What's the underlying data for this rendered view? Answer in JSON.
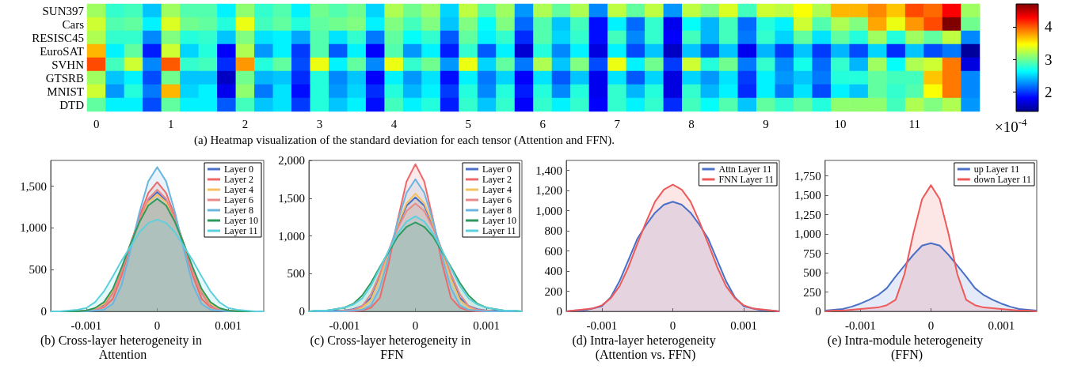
{
  "chart_data": [
    {
      "type": "heatmap",
      "title": "(a) Heatmap visualization of the standard deviation for each tensor (Attention and FFN).",
      "categories": [
        "0",
        null,
        null,
        null,
        "1",
        null,
        null,
        null,
        "2",
        null,
        null,
        null,
        "3",
        null,
        null,
        null,
        "4",
        null,
        null,
        null,
        "5",
        null,
        null,
        null,
        "6",
        null,
        null,
        null,
        "7",
        null,
        null,
        null,
        "8",
        null,
        null,
        null,
        "9",
        null,
        null,
        null,
        "10",
        null,
        null,
        null,
        "11",
        null,
        null,
        null
      ],
      "y_categories": [
        "SUN397",
        "Cars",
        "RESISC45",
        "EuroSAT",
        "SVHN",
        "GTSRB",
        "MNIST",
        "DTD"
      ],
      "cells": [
        [
          3.15,
          2.8,
          2.85,
          2.45,
          3.15,
          2.9,
          2.9,
          2.6,
          3.1,
          2.8,
          2.9,
          2.6,
          3.0,
          2.9,
          3.0,
          2.5,
          3.2,
          3.0,
          3.15,
          2.5,
          3.25,
          2.9,
          3.15,
          2.3,
          3.2,
          2.95,
          3.2,
          2.25,
          3.25,
          2.95,
          3.25,
          2.3,
          3.25,
          3.05,
          3.35,
          2.85,
          3.3,
          3.25,
          3.45,
          3.2,
          3.7,
          3.7,
          3.85,
          3.65,
          4.05,
          3.95,
          4.3,
          3.15
        ],
        [
          3.3,
          2.9,
          2.95,
          2.6,
          3.35,
          3.0,
          2.95,
          2.75,
          3.4,
          2.85,
          2.95,
          2.75,
          2.95,
          3.0,
          3.05,
          2.6,
          3.05,
          2.85,
          3.05,
          2.45,
          3.05,
          2.65,
          3.05,
          2.15,
          2.9,
          2.45,
          2.85,
          1.85,
          2.6,
          2.15,
          2.8,
          1.75,
          2.65,
          2.4,
          2.85,
          2.15,
          2.75,
          2.6,
          3.3,
          2.9,
          3.2,
          3.05,
          3.75,
          3.4,
          3.8,
          4.05,
          4.7,
          3.0
        ],
        [
          3.2,
          2.8,
          2.8,
          2.25,
          3.05,
          2.75,
          2.8,
          2.45,
          3.05,
          2.55,
          2.6,
          2.35,
          2.9,
          2.55,
          2.8,
          2.2,
          2.95,
          2.65,
          2.8,
          2.1,
          2.95,
          2.6,
          2.8,
          1.95,
          2.9,
          2.5,
          2.8,
          1.85,
          2.85,
          2.25,
          2.8,
          1.8,
          2.85,
          2.4,
          2.85,
          2.2,
          2.8,
          2.5,
          2.95,
          2.55,
          2.95,
          2.75,
          3.15,
          2.75,
          3.15,
          2.95,
          3.25,
          2.25
        ],
        [
          3.7,
          2.6,
          2.95,
          1.9,
          3.3,
          2.5,
          2.75,
          1.8,
          3.2,
          2.3,
          2.6,
          2.0,
          2.9,
          2.1,
          2.6,
          1.8,
          2.9,
          2.3,
          2.6,
          1.9,
          2.8,
          2.1,
          2.6,
          1.65,
          2.75,
          2.25,
          2.6,
          1.7,
          2.6,
          2.05,
          2.45,
          1.6,
          2.45,
          2.05,
          2.45,
          1.75,
          2.4,
          2.0,
          2.45,
          2.0,
          2.4,
          2.05,
          2.5,
          1.95,
          2.45,
          2.05,
          2.2,
          1.45
        ],
        [
          4.05,
          2.85,
          3.3,
          2.25,
          4.0,
          2.8,
          2.85,
          1.95,
          3.8,
          2.75,
          2.95,
          2.05,
          3.4,
          2.6,
          2.95,
          2.25,
          3.4,
          2.8,
          3.0,
          2.3,
          3.4,
          2.5,
          2.95,
          2.2,
          3.2,
          2.45,
          3.05,
          2.05,
          3.4,
          2.6,
          3.0,
          2.0,
          3.3,
          2.75,
          3.0,
          2.2,
          2.8,
          2.25,
          2.7,
          2.15,
          2.8,
          2.4,
          3.15,
          2.65,
          3.2,
          3.3,
          3.9,
          1.7
        ],
        [
          3.15,
          2.45,
          2.6,
          2.05,
          3.0,
          2.45,
          2.45,
          1.6,
          3.0,
          2.4,
          2.45,
          1.95,
          2.75,
          2.25,
          2.45,
          1.8,
          2.6,
          2.3,
          2.55,
          1.85,
          2.6,
          2.2,
          2.5,
          1.8,
          2.55,
          2.1,
          2.45,
          1.75,
          2.55,
          2.1,
          2.5,
          1.7,
          2.5,
          2.3,
          2.55,
          2.0,
          2.6,
          2.3,
          2.45,
          2.2,
          2.75,
          2.75,
          2.95,
          2.85,
          2.85,
          3.65,
          3.9,
          2.25
        ],
        [
          3.3,
          2.3,
          2.75,
          2.2,
          3.7,
          2.5,
          2.6,
          1.75,
          3.1,
          2.2,
          2.55,
          1.85,
          2.75,
          2.3,
          2.5,
          1.95,
          2.75,
          2.4,
          2.6,
          2.0,
          2.75,
          2.25,
          2.75,
          1.9,
          2.75,
          2.25,
          2.75,
          1.75,
          2.8,
          2.4,
          2.75,
          1.7,
          2.8,
          2.4,
          2.6,
          1.95,
          2.6,
          2.2,
          2.55,
          2.05,
          2.6,
          2.45,
          2.95,
          2.8,
          2.9,
          3.45,
          3.9,
          2.25
        ],
        [
          2.95,
          2.6,
          2.6,
          2.05,
          2.95,
          2.6,
          2.6,
          2.1,
          2.85,
          2.45,
          2.55,
          2.0,
          2.75,
          2.45,
          2.6,
          1.85,
          2.85,
          2.6,
          2.75,
          1.9,
          2.8,
          2.45,
          2.8,
          1.8,
          2.8,
          2.6,
          2.8,
          1.8,
          2.8,
          2.6,
          2.8,
          1.95,
          2.85,
          2.65,
          2.9,
          2.45,
          2.95,
          2.8,
          2.95,
          2.75,
          3.1,
          3.1,
          3.1,
          2.85,
          3.2,
          3.05,
          3.2,
          2.3
        ]
      ],
      "clim": [
        1.4,
        4.7
      ],
      "cticks": [
        2,
        3,
        4
      ],
      "clabel": "×10$^{-4}$"
    },
    {
      "type": "area",
      "title": "(b) Cross-layer heterogeneity in Attention",
      "x": [
        -0.0015,
        -0.001375,
        -0.00125,
        -0.001125,
        -0.001,
        -0.000875,
        -0.00075,
        -0.000625,
        -0.0005,
        -0.000375,
        -0.00025,
        -0.000125,
        0,
        0.000125,
        0.00025,
        0.000375,
        0.0005,
        0.000625,
        0.00075,
        0.000875,
        0.001,
        0.001125,
        0.00125,
        0.001375,
        0.0015
      ],
      "xlim": [
        -0.0015,
        0.0015
      ],
      "xticks": [
        -0.001,
        0,
        0.001
      ],
      "ylim": [
        0,
        1810
      ],
      "yticks": [
        0,
        500,
        {
          "value": 1000,
          "label": "1,000"
        },
        {
          "value": 1500,
          "label": "1,500"
        }
      ],
      "legend": "top right",
      "series": [
        {
          "name": "Layer 0",
          "color": "#4a6fc8",
          "values": [
            0,
            0,
            0,
            0,
            10,
            20,
            70,
            230,
            500,
            810,
            1100,
            1330,
            1430,
            1330,
            1100,
            810,
            500,
            230,
            70,
            20,
            10,
            0,
            0,
            0,
            0
          ]
        },
        {
          "name": "Layer 2",
          "color": "#ee6a6a",
          "values": [
            0,
            0,
            0,
            0,
            10,
            20,
            50,
            150,
            430,
            800,
            1140,
            1420,
            1550,
            1420,
            1140,
            800,
            430,
            150,
            50,
            20,
            10,
            0,
            0,
            0,
            0
          ]
        },
        {
          "name": "Layer 4",
          "color": "#f5c060",
          "values": [
            0,
            0,
            0,
            0,
            10,
            30,
            90,
            250,
            510,
            810,
            1090,
            1310,
            1400,
            1310,
            1090,
            810,
            510,
            250,
            90,
            30,
            10,
            0,
            0,
            0,
            0
          ]
        },
        {
          "name": "Layer 6",
          "color": "#e88a8a",
          "values": [
            0,
            0,
            0,
            0,
            10,
            20,
            60,
            210,
            480,
            810,
            1110,
            1350,
            1460,
            1350,
            1110,
            810,
            480,
            210,
            60,
            20,
            10,
            0,
            0,
            0,
            0
          ]
        },
        {
          "name": "Layer 8",
          "color": "#6bb5e0",
          "values": [
            0,
            0,
            0,
            0,
            0,
            10,
            20,
            90,
            320,
            740,
            1190,
            1560,
            1730,
            1560,
            1190,
            740,
            320,
            90,
            20,
            10,
            0,
            0,
            0,
            0,
            0
          ]
        },
        {
          "name": "Layer 10",
          "color": "#2e9b5e",
          "values": [
            0,
            0,
            0,
            0,
            10,
            40,
            110,
            270,
            530,
            810,
            1070,
            1270,
            1350,
            1270,
            1070,
            810,
            530,
            270,
            110,
            40,
            10,
            0,
            0,
            0,
            0
          ]
        },
        {
          "name": "Layer 11",
          "color": "#5cd0dc",
          "values": [
            0,
            0,
            10,
            20,
            40,
            110,
            240,
            420,
            610,
            780,
            950,
            1060,
            1100,
            1060,
            950,
            780,
            610,
            420,
            240,
            110,
            40,
            20,
            10,
            0,
            0
          ]
        }
      ]
    },
    {
      "type": "area",
      "title": "(c) Cross-layer heterogeneity in FFN",
      "x": [
        -0.0015,
        -0.001375,
        -0.00125,
        -0.001125,
        -0.001,
        -0.000875,
        -0.00075,
        -0.000625,
        -0.0005,
        -0.000375,
        -0.00025,
        -0.000125,
        0,
        0.000125,
        0.00025,
        0.000375,
        0.0005,
        0.000625,
        0.00075,
        0.000875,
        0.001,
        0.001125,
        0.00125,
        0.001375,
        0.0015
      ],
      "xlim": [
        -0.0015,
        0.0015
      ],
      "xticks": [
        -0.001,
        0,
        0.001
      ],
      "ylim": [
        0,
        2000
      ],
      "yticks": [
        0,
        500,
        {
          "value": 1000,
          "label": "1,000"
        },
        {
          "value": 1500,
          "label": "1,500"
        },
        {
          "value": 2000,
          "label": "2,000"
        }
      ],
      "legend": "top right",
      "series": [
        {
          "name": "Layer 0",
          "color": "#4a6fc8",
          "values": [
            0,
            0,
            0,
            10,
            10,
            30,
            70,
            180,
            450,
            800,
            1130,
            1400,
            1510,
            1400,
            1130,
            800,
            450,
            180,
            70,
            30,
            10,
            10,
            0,
            0,
            0
          ]
        },
        {
          "name": "Layer 2",
          "color": "#ee6a6a",
          "values": [
            0,
            0,
            0,
            0,
            0,
            0,
            10,
            50,
            180,
            640,
            1210,
            1720,
            1950,
            1720,
            1210,
            640,
            180,
            50,
            10,
            0,
            0,
            0,
            0,
            0,
            0
          ]
        },
        {
          "name": "Layer 4",
          "color": "#f5c060",
          "values": [
            0,
            0,
            0,
            0,
            10,
            10,
            50,
            150,
            430,
            790,
            1150,
            1430,
            1560,
            1430,
            1150,
            790,
            430,
            150,
            50,
            10,
            10,
            0,
            0,
            0,
            0
          ]
        },
        {
          "name": "Layer 6",
          "color": "#e88a8a",
          "values": [
            0,
            0,
            0,
            0,
            10,
            20,
            70,
            230,
            500,
            810,
            1100,
            1330,
            1430,
            1330,
            1100,
            810,
            500,
            230,
            70,
            20,
            10,
            0,
            0,
            0,
            0
          ]
        },
        {
          "name": "Layer 8",
          "color": "#6bb5e0",
          "values": [
            0,
            0,
            0,
            0,
            0,
            10,
            20,
            80,
            310,
            730,
            1190,
            1570,
            1750,
            1570,
            1190,
            730,
            310,
            80,
            20,
            10,
            0,
            0,
            0,
            0,
            0
          ]
        },
        {
          "name": "Layer 10",
          "color": "#2e9b5e",
          "values": [
            0,
            10,
            10,
            30,
            50,
            100,
            210,
            380,
            590,
            790,
            990,
            1120,
            1180,
            1120,
            990,
            790,
            590,
            380,
            210,
            100,
            50,
            30,
            10,
            10,
            0
          ]
        },
        {
          "name": "Layer 11",
          "color": "#5cd0dc",
          "values": [
            0,
            10,
            10,
            30,
            50,
            90,
            170,
            340,
            570,
            810,
            1030,
            1190,
            1260,
            1190,
            1030,
            810,
            570,
            340,
            170,
            90,
            50,
            30,
            10,
            10,
            0
          ]
        }
      ]
    },
    {
      "type": "area",
      "title": "(d) Intra-layer heterogeneity (Attention vs. FFN)",
      "x": [
        -0.0015,
        -0.001375,
        -0.00125,
        -0.001125,
        -0.001,
        -0.000875,
        -0.00075,
        -0.000625,
        -0.0005,
        -0.000375,
        -0.00025,
        -0.000125,
        0,
        0.000125,
        0.00025,
        0.000375,
        0.0005,
        0.000625,
        0.00075,
        0.000875,
        0.001,
        0.001125,
        0.00125,
        0.001375,
        0.0015
      ],
      "xlim": [
        -0.0015,
        0.0015
      ],
      "xticks": [
        -0.001,
        0,
        0.001
      ],
      "ylim": [
        0,
        1500
      ],
      "yticks": [
        0,
        200,
        400,
        600,
        800,
        {
          "value": 1000,
          "label": "1,000"
        },
        {
          "value": 1200,
          "label": "1,200"
        },
        {
          "value": 1400,
          "label": "1,400"
        }
      ],
      "legend": "top right",
      "series": [
        {
          "name": "Attn Layer 11",
          "color": "#4a6fc8",
          "values": [
            0,
            10,
            10,
            30,
            50,
            140,
            300,
            510,
            720,
            860,
            980,
            1060,
            1090,
            1060,
            980,
            860,
            720,
            510,
            300,
            140,
            50,
            30,
            10,
            10,
            0
          ]
        },
        {
          "name": "FNN Layer 11",
          "color": "#ee5a5a",
          "values": [
            0,
            10,
            20,
            30,
            60,
            130,
            250,
            440,
            670,
            890,
            1090,
            1210,
            1260,
            1210,
            1090,
            890,
            670,
            440,
            250,
            130,
            60,
            30,
            20,
            10,
            0
          ]
        }
      ]
    },
    {
      "type": "area",
      "title": "(e) Intra-module heterogeneity (FFN)",
      "x": [
        -0.0015,
        -0.001375,
        -0.00125,
        -0.001125,
        -0.001,
        -0.000875,
        -0.00075,
        -0.000625,
        -0.0005,
        -0.000375,
        -0.00025,
        -0.000125,
        0,
        0.000125,
        0.00025,
        0.000375,
        0.0005,
        0.000625,
        0.00075,
        0.000875,
        0.001,
        0.001125,
        0.00125,
        0.001375,
        0.0015
      ],
      "xlim": [
        -0.0015,
        0.0015
      ],
      "xticks": [
        -0.001,
        0,
        0.001
      ],
      "ylim": [
        0,
        1950
      ],
      "yticks": [
        0,
        250,
        500,
        750,
        {
          "value": 1000,
          "label": "1,000"
        },
        {
          "value": 1250,
          "label": "1,250"
        },
        {
          "value": 1500,
          "label": "1,500"
        },
        {
          "value": 1750,
          "label": "1,750"
        }
      ],
      "legend": "top right",
      "series": [
        {
          "name": "up Layer 11",
          "color": "#4a6fc8",
          "values": [
            10,
            20,
            30,
            60,
            100,
            150,
            210,
            300,
            450,
            590,
            730,
            850,
            880,
            850,
            730,
            590,
            450,
            300,
            210,
            150,
            100,
            60,
            30,
            20,
            10
          ]
        },
        {
          "name": "down Layer 11",
          "color": "#ee5a5a",
          "values": [
            0,
            10,
            10,
            20,
            30,
            40,
            50,
            80,
            150,
            480,
            1000,
            1450,
            1630,
            1450,
            1000,
            480,
            150,
            80,
            50,
            40,
            30,
            20,
            10,
            10,
            0
          ]
        }
      ]
    }
  ]
}
